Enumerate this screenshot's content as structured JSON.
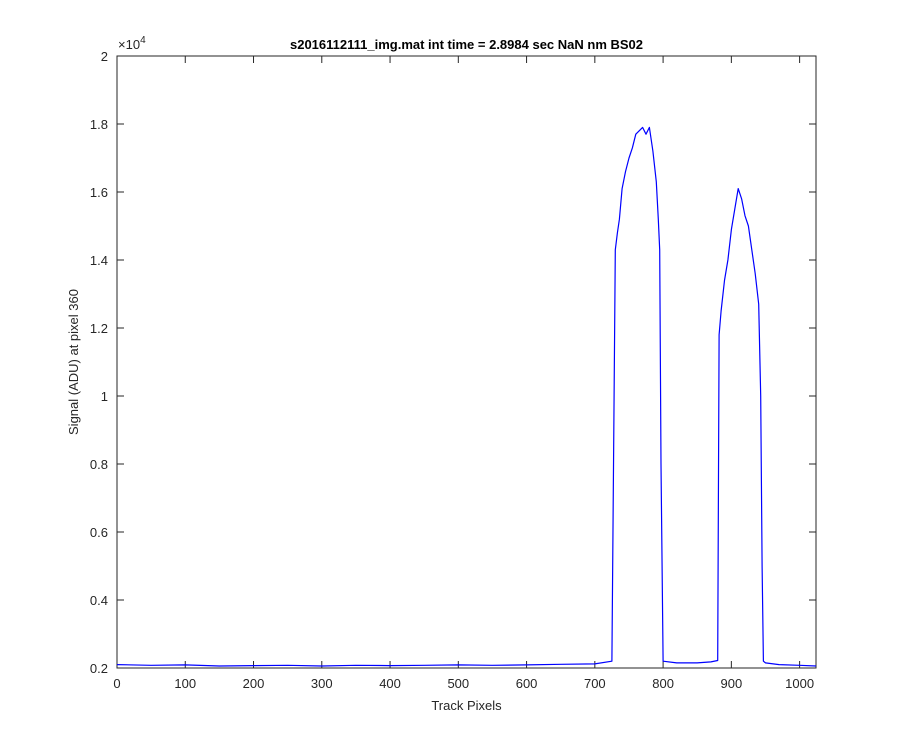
{
  "chart_data": {
    "type": "line",
    "title": "s2016112111_img.mat int time = 2.8984 sec  NaN nm BS02",
    "xlabel": "Track Pixels",
    "ylabel": "Signal (ADU) at pixel 360",
    "xlim": [
      0,
      1024
    ],
    "ylim": [
      2000,
      20000
    ],
    "x_ticks": [
      0,
      100,
      200,
      300,
      400,
      500,
      600,
      700,
      800,
      900,
      1000
    ],
    "y_tick_values": [
      2000,
      4000,
      6000,
      8000,
      10000,
      12000,
      14000,
      16000,
      18000,
      20000
    ],
    "y_tick_labels": [
      "0.2",
      "0.4",
      "0.6",
      "0.8",
      "1",
      "1.2",
      "1.4",
      "1.6",
      "1.8",
      "2"
    ],
    "y_exponent_label": "×10",
    "y_exponent_power": "4",
    "grid": false,
    "line_color": "#0000ff",
    "series": [
      {
        "x": [
          0,
          50,
          100,
          150,
          200,
          250,
          300,
          350,
          400,
          450,
          500,
          550,
          600,
          650,
          700,
          725,
          730,
          733,
          736,
          740,
          745,
          750,
          755,
          760,
          765,
          770,
          775,
          780,
          785,
          790,
          793,
          795,
          797,
          800,
          820,
          850,
          870,
          880,
          882,
          885,
          890,
          895,
          900,
          905,
          910,
          915,
          920,
          925,
          930,
          935,
          940,
          943,
          945,
          947,
          950,
          970,
          1000,
          1024
        ],
        "y": [
          2100,
          2080,
          2090,
          2060,
          2070,
          2080,
          2060,
          2080,
          2070,
          2080,
          2090,
          2080,
          2090,
          2110,
          2120,
          2200,
          14300,
          14800,
          15200,
          16100,
          16600,
          17000,
          17300,
          17700,
          17800,
          17900,
          17700,
          17900,
          17200,
          16300,
          15200,
          14300,
          8000,
          2200,
          2150,
          2150,
          2180,
          2220,
          11800,
          12500,
          13400,
          14000,
          14900,
          15500,
          16100,
          15800,
          15300,
          15000,
          14300,
          13600,
          12700,
          10000,
          5000,
          2200,
          2150,
          2100,
          2080,
          2060
        ]
      }
    ]
  }
}
